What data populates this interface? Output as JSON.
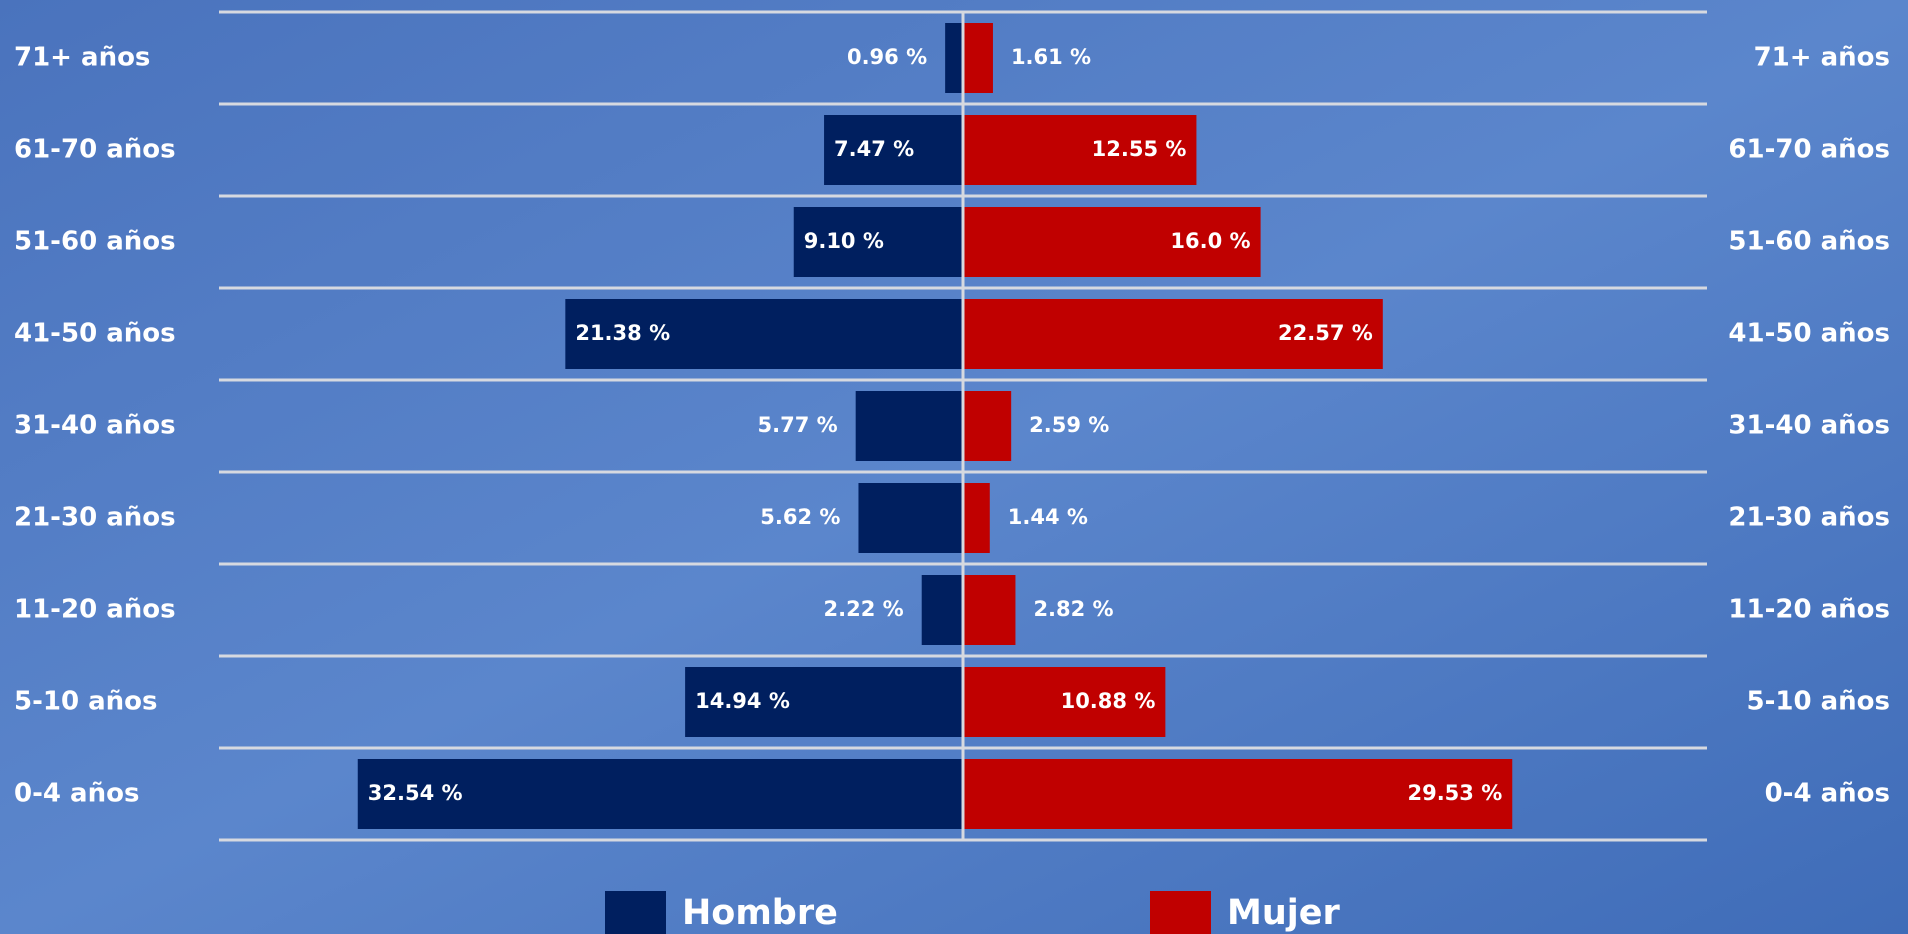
{
  "chart_data": {
    "type": "pyramid",
    "categories": [
      "71+ años",
      "61-70 años",
      "51-60 años",
      "41-50 años",
      "31-40 años",
      "21-30 años",
      "11-20 años",
      "5-10 años",
      "0-4 años"
    ],
    "series": [
      {
        "name": "Hombre",
        "color": "#001f5f",
        "side": "left",
        "values": [
          0.96,
          7.47,
          9.1,
          21.38,
          5.77,
          5.62,
          2.22,
          14.94,
          32.54
        ],
        "value_labels": [
          "0.96 %",
          "7.47 %",
          "9.10 %",
          "21.38 %",
          "5.77 %",
          "5.62 %",
          "2.22 %",
          "14.94 %",
          "32.54 %"
        ]
      },
      {
        "name": "Mujer",
        "color": "#c00000",
        "side": "right",
        "values": [
          1.61,
          12.55,
          16.0,
          22.57,
          2.59,
          1.44,
          2.82,
          10.88,
          29.53
        ],
        "value_labels": [
          "1.61 %",
          "12.55 %",
          "16.0 %",
          "22.57 %",
          "2.59 %",
          "1.44 %",
          "2.82 %",
          "10.88 %",
          "29.53 %"
        ]
      }
    ],
    "xlim": [
      0,
      40
    ]
  }
}
